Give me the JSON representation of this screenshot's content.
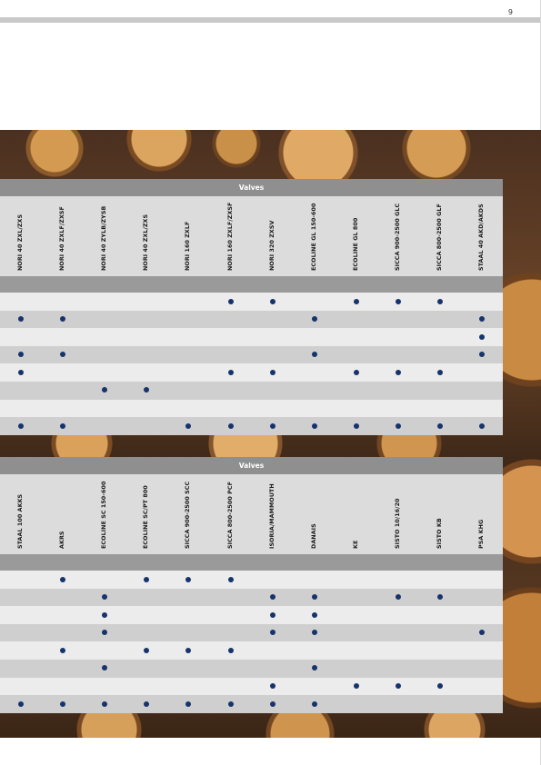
{
  "page_number": "9",
  "colors": {
    "dot": "#16336b",
    "title_bar": "#8f8f8f",
    "header_bg": "#dcdcdc"
  },
  "tables": [
    {
      "title": "Valves",
      "columns": [
        "NORI 40 ZXL/ZXS",
        "NORI 40 ZXLF/ZXSF",
        "NORI 40 ZYLB/ZYSB",
        "NORI 40 ZXL/ZXS",
        "NORI 160 ZXLF",
        "NORI 160 ZXLF/ZXSF",
        "NORI 320 ZXSV",
        "ECOLINE GL 150-600",
        "ECOLINE GL 800",
        "SICCA 900-2500 GLC",
        "SICCA 800-2500 GLF",
        "STAAL 40 AKD/AKDS"
      ],
      "rows": [
        [
          0,
          0,
          0,
          0,
          0,
          1,
          1,
          0,
          1,
          1,
          1,
          0
        ],
        [
          1,
          1,
          0,
          0,
          0,
          0,
          0,
          1,
          0,
          0,
          0,
          1
        ],
        [
          0,
          0,
          0,
          0,
          0,
          0,
          0,
          0,
          0,
          0,
          0,
          1
        ],
        [
          1,
          1,
          0,
          0,
          0,
          0,
          0,
          1,
          0,
          0,
          0,
          1
        ],
        [
          1,
          0,
          0,
          0,
          0,
          1,
          1,
          0,
          1,
          1,
          1,
          0
        ],
        [
          0,
          0,
          1,
          1,
          0,
          0,
          0,
          0,
          0,
          0,
          0,
          0
        ],
        [
          0,
          0,
          0,
          0,
          0,
          0,
          0,
          0,
          0,
          0,
          0,
          0
        ],
        [
          1,
          1,
          0,
          0,
          1,
          1,
          1,
          1,
          1,
          1,
          1,
          1
        ]
      ]
    },
    {
      "title": "Valves",
      "columns": [
        "STAAL 100 AKKS",
        "AKRS",
        "ECOLINE SC 150-600",
        "ECOLINE SC/PT 800",
        "SICCA 900-2500 SCC",
        "SICCA 800-2500 PCF",
        "ISORIA/MAMMOUTH",
        "DANAIS",
        "KE",
        "SISTO 10/16/20",
        "SISTO KB",
        "PSA KHG"
      ],
      "rows": [
        [
          0,
          1,
          0,
          1,
          1,
          1,
          0,
          0,
          0,
          0,
          0,
          0
        ],
        [
          0,
          0,
          1,
          0,
          0,
          0,
          1,
          1,
          0,
          1,
          1,
          0
        ],
        [
          0,
          0,
          1,
          0,
          0,
          0,
          1,
          1,
          0,
          0,
          0,
          0
        ],
        [
          0,
          0,
          1,
          0,
          0,
          0,
          1,
          1,
          0,
          0,
          0,
          1
        ],
        [
          0,
          1,
          0,
          1,
          1,
          1,
          0,
          0,
          0,
          0,
          0,
          0
        ],
        [
          0,
          0,
          1,
          0,
          0,
          0,
          0,
          1,
          0,
          0,
          0,
          0
        ],
        [
          0,
          0,
          0,
          0,
          0,
          0,
          1,
          0,
          1,
          1,
          1,
          0
        ],
        [
          1,
          1,
          1,
          1,
          1,
          1,
          1,
          1,
          0,
          0,
          0,
          0
        ]
      ]
    }
  ]
}
